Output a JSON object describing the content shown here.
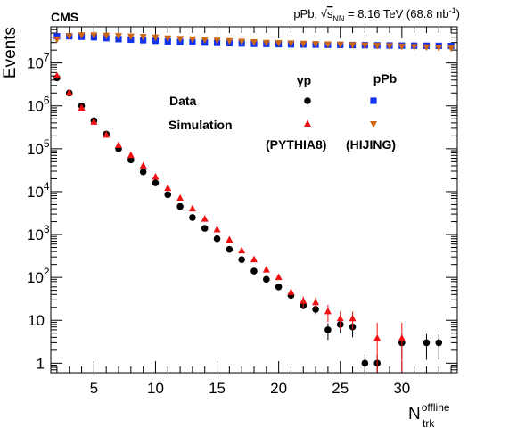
{
  "chart_data": {
    "type": "scatter",
    "header": {
      "experiment": "CMS",
      "collision": "pPb, ",
      "sqrt_symbol": "√",
      "s_sym": "s",
      "s_sub": "NN",
      "energy": " = 8.16 TeV (68.8 nb",
      "lumi_exp": "-1",
      "close": ")"
    },
    "ylabel": "Events",
    "xlabel": {
      "main": "N",
      "sup": "offline",
      "sub": "trk"
    },
    "yscale": "log",
    "xlim": [
      1.5,
      34.5
    ],
    "ylim": [
      0.6,
      70000000
    ],
    "x_ticks": [
      5,
      10,
      15,
      20,
      25,
      30
    ],
    "x_tick_labels": [
      "5",
      "10",
      "15",
      "20",
      "25",
      "30"
    ],
    "y_ticks": [
      1,
      10,
      100,
      1000,
      10000,
      100000,
      1000000,
      10000000
    ],
    "y_tick_labels": [
      {
        "base": "1",
        "exp": ""
      },
      {
        "base": "10",
        "exp": ""
      },
      {
        "base": "10",
        "exp": "2"
      },
      {
        "base": "10",
        "exp": "3"
      },
      {
        "base": "10",
        "exp": "4"
      },
      {
        "base": "10",
        "exp": "5"
      },
      {
        "base": "10",
        "exp": "6"
      },
      {
        "base": "10",
        "exp": "7"
      }
    ],
    "legend": {
      "col_gp": "γp",
      "col_ppb": "pPb",
      "row_data": "Data",
      "row_sim": "Simulation",
      "gen_gp": "(PYTHIA8)",
      "gen_ppb": "(HIJING)"
    },
    "colors": {
      "gp_data": "#000000",
      "gp_sim": "#ee1111",
      "ppb_data": "#1133ee",
      "ppb_sim": "#cc6611"
    },
    "series": [
      {
        "key": "gp_data",
        "marker": "circle",
        "x": [
          2,
          3,
          4,
          5,
          6,
          7,
          8,
          9,
          10,
          11,
          12,
          13,
          14,
          15,
          16,
          17,
          18,
          19,
          20,
          21,
          22,
          23,
          24,
          25,
          26,
          27,
          28,
          30,
          32,
          33
        ],
        "y": [
          4500000,
          2000000,
          1000000,
          450000,
          220000,
          100000,
          55000,
          29000,
          16000,
          8500,
          4500,
          2500,
          1400,
          800,
          450,
          260,
          140,
          90,
          60,
          38,
          22,
          18,
          6,
          8,
          7,
          1,
          1,
          3,
          3,
          3
        ],
        "err_lo": [
          0,
          0,
          0,
          0,
          0,
          0,
          0,
          0,
          0,
          0,
          0,
          0,
          0,
          0,
          0,
          0,
          0,
          0,
          0,
          6,
          4,
          4,
          2.5,
          3,
          3,
          0.5,
          0.5,
          1.8,
          1.8,
          1.8
        ],
        "err_hi": [
          0,
          0,
          0,
          0,
          0,
          0,
          0,
          0,
          0,
          0,
          0,
          0,
          0,
          0,
          0,
          0,
          0,
          0,
          0,
          6,
          4,
          4,
          2.5,
          3,
          3,
          0.6,
          0.6,
          1.8,
          1.8,
          1.8
        ]
      },
      {
        "key": "gp_sim",
        "marker": "triangle-up",
        "x": [
          2,
          3,
          4,
          5,
          6,
          7,
          8,
          9,
          10,
          11,
          12,
          13,
          14,
          15,
          16,
          17,
          18,
          19,
          20,
          21,
          22,
          23,
          24,
          25,
          26,
          28,
          30
        ],
        "y": [
          5000000,
          2000000,
          900000,
          420000,
          210000,
          120000,
          70000,
          40000,
          22000,
          12000,
          7000,
          4000,
          2300,
          1300,
          750,
          420,
          260,
          150,
          100,
          45,
          28,
          26,
          16,
          11,
          11,
          3.8,
          3.8
        ],
        "err_lo": [
          0,
          0,
          0,
          0,
          0,
          0,
          0,
          0,
          0,
          0,
          0,
          0,
          0,
          0,
          0,
          0,
          0,
          0,
          0,
          8,
          8,
          8,
          7,
          5,
          5,
          3.4,
          3.4
        ],
        "err_hi": [
          0,
          0,
          0,
          0,
          0,
          0,
          0,
          0,
          0,
          0,
          0,
          0,
          0,
          0,
          0,
          0,
          0,
          0,
          0,
          8,
          8,
          8,
          7,
          5,
          5,
          5,
          5
        ]
      },
      {
        "key": "ppb_data",
        "marker": "square",
        "x": [
          2,
          3,
          4,
          5,
          6,
          7,
          8,
          9,
          10,
          11,
          12,
          13,
          14,
          15,
          16,
          17,
          18,
          19,
          20,
          21,
          22,
          23,
          24,
          25,
          26,
          27,
          28,
          29,
          30,
          31,
          32,
          33,
          34
        ],
        "y": [
          42000000,
          42000000,
          41000000,
          40000000,
          38000000,
          36000000,
          35000000,
          34000000,
          33000000,
          32000000,
          31000000,
          30500000,
          30000000,
          29500000,
          29000000,
          28500000,
          28000000,
          27800000,
          27500000,
          27200000,
          27000000,
          26800000,
          26600000,
          26400000,
          26200000,
          26000000,
          25800000,
          25600000,
          25400000,
          25300000,
          25200000,
          25100000,
          25000000
        ]
      },
      {
        "key": "ppb_sim",
        "marker": "triangle-down",
        "x": [
          2,
          3,
          4,
          5,
          6,
          7,
          8,
          9,
          10,
          11,
          12,
          13,
          14,
          15,
          16,
          17,
          18,
          19,
          20,
          21,
          22,
          23,
          24,
          25,
          26,
          27,
          28,
          29,
          30,
          31,
          32,
          33,
          34
        ],
        "y": [
          36000000,
          43000000,
          45000000,
          45000000,
          44000000,
          43000000,
          42000000,
          41000000,
          40000000,
          38000000,
          37000000,
          36000000,
          35000000,
          34000000,
          33000000,
          32000000,
          31000000,
          30000000,
          29500000,
          29000000,
          28500000,
          28000000,
          27500000,
          27000000,
          26500000,
          26000000,
          25500000,
          25000000,
          24500000,
          24000000,
          23500000,
          23000000,
          22500000
        ]
      }
    ]
  }
}
